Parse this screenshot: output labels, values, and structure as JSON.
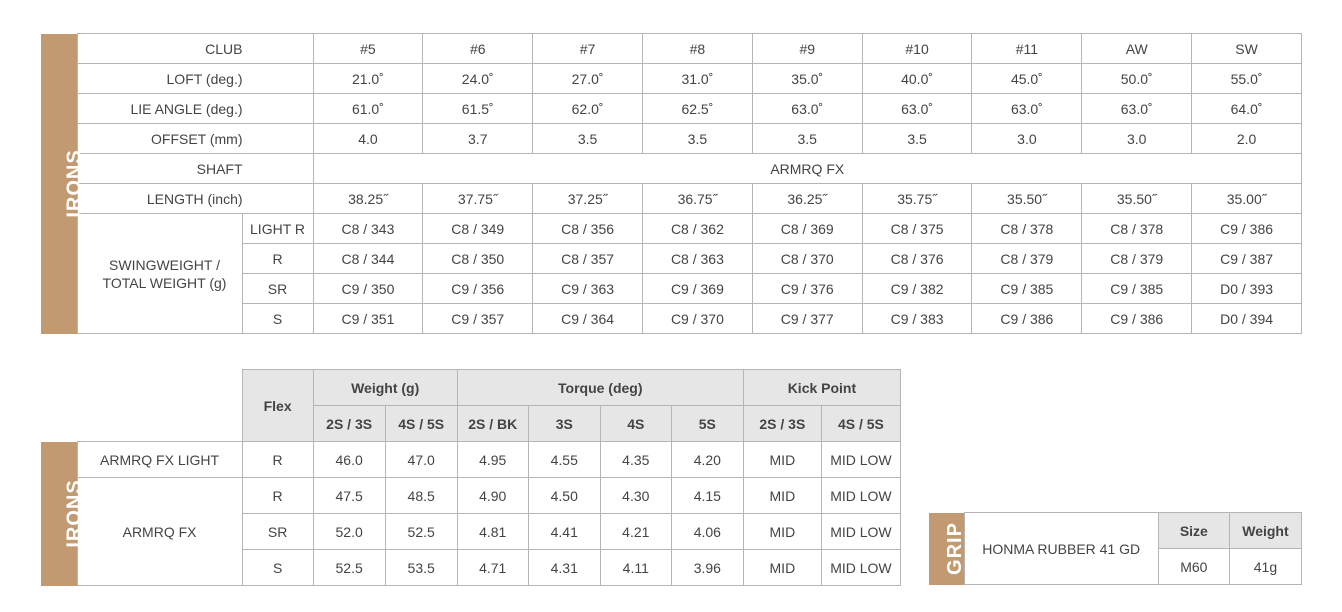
{
  "colors": {
    "accent": "#c19a72",
    "header_bg": "#e6e6e6",
    "border": "#b5b5b5",
    "text": "#444444"
  },
  "specs": {
    "section_label": "IRONS",
    "club_label": "CLUB",
    "clubs": [
      "#5",
      "#6",
      "#7",
      "#8",
      "#9",
      "#10",
      "#11",
      "AW",
      "SW"
    ],
    "rows": [
      {
        "label": "LOFT (deg.)",
        "values": [
          "21.0˚",
          "24.0˚",
          "27.0˚",
          "31.0˚",
          "35.0˚",
          "40.0˚",
          "45.0˚",
          "50.0˚",
          "55.0˚"
        ]
      },
      {
        "label": "LIE ANGLE (deg.)",
        "values": [
          "61.0˚",
          "61.5˚",
          "62.0˚",
          "62.5˚",
          "63.0˚",
          "63.0˚",
          "63.0˚",
          "63.0˚",
          "64.0˚"
        ]
      },
      {
        "label": "OFFSET (mm)",
        "values": [
          "4.0",
          "3.7",
          "3.5",
          "3.5",
          "3.5",
          "3.5",
          "3.0",
          "3.0",
          "2.0"
        ]
      }
    ],
    "shaft_label": "SHAFT",
    "shaft_value": "ARMRQ FX",
    "length_label": "LENGTH (inch)",
    "length_values": [
      "38.25˝",
      "37.75˝",
      "37.25˝",
      "36.75˝",
      "36.25˝",
      "35.75˝",
      "35.50˝",
      "35.50˝",
      "35.00˝"
    ],
    "swingweight_label_1": "SWINGWEIGHT /",
    "swingweight_label_2": "TOTAL WEIGHT (g)",
    "swingweight_rows": [
      {
        "flex": "LIGHT R",
        "values": [
          "C8 / 343",
          "C8 / 349",
          "C8 / 356",
          "C8 / 362",
          "C8 / 369",
          "C8 / 375",
          "C8 / 378",
          "C8 / 378",
          "C9 / 386"
        ]
      },
      {
        "flex": "R",
        "values": [
          "C8 / 344",
          "C8 / 350",
          "C8 / 357",
          "C8 / 363",
          "C8 / 370",
          "C8 / 376",
          "C8 / 379",
          "C8 / 379",
          "C9 / 387"
        ]
      },
      {
        "flex": "SR",
        "values": [
          "C9 / 350",
          "C9 / 356",
          "C9 / 363",
          "C9 / 369",
          "C9 / 376",
          "C9 / 382",
          "C9 / 385",
          "C9 / 385",
          "D0 / 393"
        ]
      },
      {
        "flex": "S",
        "values": [
          "C9 / 351",
          "C9 / 357",
          "C9 / 364",
          "C9 / 370",
          "C9 / 377",
          "C9 / 383",
          "C9 / 386",
          "C9 / 386",
          "D0 / 394"
        ]
      }
    ]
  },
  "shaft": {
    "section_label": "IRONS",
    "headers": {
      "flex": "Flex",
      "weight": "Weight (g)",
      "torque": "Torque (deg)",
      "kick": "Kick Point",
      "sub": [
        "2S / 3S",
        "4S / 5S",
        "2S / BK",
        "3S",
        "4S",
        "5S",
        "2S / 3S",
        "4S / 5S"
      ]
    },
    "models": [
      {
        "name": "ARMRQ FX LIGHT",
        "rows": [
          {
            "flex": "R",
            "values": [
              "46.0",
              "47.0",
              "4.95",
              "4.55",
              "4.35",
              "4.20",
              "MID",
              "MID LOW"
            ]
          }
        ]
      },
      {
        "name": "ARMRQ FX",
        "rows": [
          {
            "flex": "R",
            "values": [
              "47.5",
              "48.5",
              "4.90",
              "4.50",
              "4.30",
              "4.15",
              "MID",
              "MID LOW"
            ]
          },
          {
            "flex": "SR",
            "values": [
              "52.0",
              "52.5",
              "4.81",
              "4.41",
              "4.21",
              "4.06",
              "MID",
              "MID LOW"
            ]
          },
          {
            "flex": "S",
            "values": [
              "52.5",
              "53.5",
              "4.71",
              "4.31",
              "4.11",
              "3.96",
              "MID",
              "MID LOW"
            ]
          }
        ]
      }
    ]
  },
  "grip": {
    "section_label": "GRIP",
    "name": "HONMA RUBBER 41 GD",
    "size_label": "Size",
    "weight_label": "Weight",
    "size": "M60",
    "weight": "41g"
  }
}
